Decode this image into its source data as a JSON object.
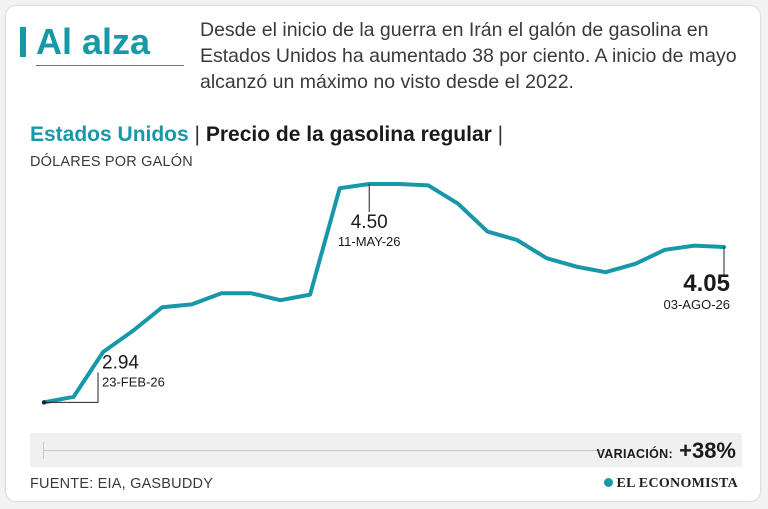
{
  "header": {
    "title": "Al alza",
    "intro": "Desde el inicio de la guerra en Irán el galón de gasolina en Estados Unidos ha aumentado 38 por ciento. A inicio de mayo alcanzó un máximo no visto desde el 2022."
  },
  "chart_header": {
    "region": "Estados Unidos",
    "separator": "|",
    "metric": "Precio de la gasolina regular",
    "trailing_separator": "|",
    "units": "DÓLARES POR GALÓN"
  },
  "chart_data": {
    "type": "line",
    "title": "Precio de la gasolina regular",
    "ylabel": "DÓLARES POR GALÓN",
    "grid": false,
    "legend": "none",
    "ylim": [
      2.9,
      4.6
    ],
    "series": [
      {
        "color": "#1798a9",
        "values": [
          2.94,
          2.98,
          3.3,
          3.45,
          3.62,
          3.64,
          3.72,
          3.72,
          3.67,
          3.71,
          4.47,
          4.5,
          4.5,
          4.49,
          4.36,
          4.16,
          4.1,
          3.97,
          3.91,
          3.87,
          3.93,
          4.03,
          4.06,
          4.05
        ]
      }
    ],
    "annotations": [
      {
        "index": 0,
        "value": "2.94",
        "date": "23-FEB-26"
      },
      {
        "index": 11,
        "value": "4.50",
        "date": "11-MAY-26"
      },
      {
        "index": 23,
        "value": "4.05",
        "date": "03-AGO-26"
      }
    ]
  },
  "variation": {
    "label": "VARIACIÓN:",
    "value": "+38%"
  },
  "footer": {
    "source": "FUENTE: EIA, GASBUDDY",
    "brand": "EL ECONOMISTA"
  },
  "colors": {
    "accent": "#1798a9",
    "text": "#1a1a1a"
  }
}
